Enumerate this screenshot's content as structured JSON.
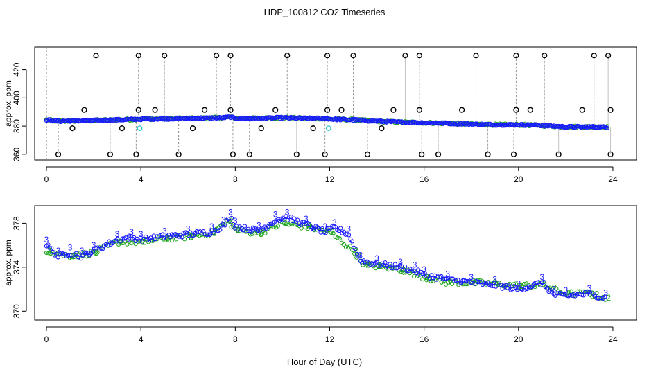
{
  "title": "HDP_100812  CO2 Timeseries",
  "xlabel": "Hour of Day (UTC)",
  "colors": {
    "blue": "#1a1aff",
    "green": "#1aa31a",
    "cyan": "#33cccc",
    "black": "#000000",
    "gray": "#888888"
  },
  "chart_data": [
    {
      "type": "scatter",
      "name": "top-panel",
      "ylabel": "approx. ppm",
      "xlim": [
        -0.5,
        25.0
      ],
      "ylim": [
        356,
        436
      ],
      "xticks": [
        "0",
        "4",
        "8",
        "12",
        "16",
        "20",
        "24"
      ],
      "xtick_values": [
        0,
        4,
        8,
        12,
        16,
        20,
        24
      ],
      "yticks": [
        "360",
        "380",
        "400",
        "420"
      ],
      "ytick_values": [
        360,
        380,
        400,
        420
      ],
      "baseline": {
        "x": [
          0,
          0.5,
          1,
          1.5,
          2,
          3,
          3.7,
          3.8,
          4,
          5,
          6,
          7,
          7.5,
          7.8,
          8,
          9,
          10,
          11,
          11.9,
          12,
          13,
          14,
          15,
          16,
          17,
          18,
          19,
          20,
          21,
          22,
          23,
          23.8
        ],
        "y": [
          384.5,
          383.5,
          383.8,
          383.8,
          384,
          384.5,
          384.8,
          385,
          385,
          385.3,
          385.5,
          385.8,
          386,
          386.5,
          385.5,
          385.5,
          386,
          385.5,
          385.5,
          385,
          384.5,
          383.5,
          382.8,
          382.5,
          382,
          381.5,
          381,
          381,
          380.5,
          379.5,
          379.5,
          379.3
        ]
      },
      "outliers_high": {
        "x": [
          2.1,
          3.9,
          5.0,
          7.2,
          7.8,
          10.2,
          11.9,
          13.0,
          15.2,
          15.8,
          18.2,
          19.9,
          21.1,
          23.2,
          23.8
        ],
        "y": 430
      },
      "outliers_mid": {
        "x": [
          1.6,
          3.9,
          4.6,
          6.7,
          7.8,
          9.7,
          11.9,
          12.5,
          14.7,
          15.8,
          17.6,
          19.9,
          20.5,
          22.7,
          23.9
        ],
        "y": 391.5
      },
      "outliers_low": {
        "x": [
          0.5,
          2.7,
          3.8,
          5.6,
          7.9,
          8.6,
          10.6,
          11.8,
          13.6,
          15.9,
          16.6,
          18.7,
          19.8,
          21.7,
          23.9
        ],
        "y": 360
      },
      "outliers_near": {
        "x": [
          1.1,
          3.2,
          6.2,
          9.1,
          11.3,
          14.2
        ],
        "y": 378.5
      },
      "cyan_points": {
        "x": [
          3.95,
          11.95
        ],
        "y": 378.5
      }
    },
    {
      "type": "scatter",
      "name": "bottom-panel",
      "ylabel": "approx. ppm",
      "xlim": [
        -0.5,
        25.0
      ],
      "ylim": [
        369.2,
        379.6
      ],
      "xticks": [
        "0",
        "4",
        "8",
        "12",
        "16",
        "20",
        "24"
      ],
      "xtick_values": [
        0,
        4,
        8,
        12,
        16,
        20,
        24
      ],
      "yticks": [
        "370",
        "374",
        "378"
      ],
      "ytick_values": [
        370,
        374,
        378
      ],
      "series": [
        {
          "name": "3",
          "color": "blue",
          "x": [
            0,
            0.5,
            1,
            1.5,
            2,
            3,
            3.6,
            4,
            5,
            6,
            7,
            7.5,
            7.8,
            8,
            9,
            9.7,
            10.2,
            11,
            11.8,
            12.2,
            12.8,
            13.3,
            14,
            15,
            15.6,
            16,
            17,
            18,
            19,
            20,
            21,
            21.5,
            22,
            23,
            23.7
          ],
          "y": [
            376,
            375,
            375.3,
            375,
            375.5,
            376.5,
            376.7,
            376.5,
            376.8,
            377,
            377.2,
            377.8,
            378.5,
            377.7,
            377.3,
            378.3,
            378.5,
            377.9,
            377.2,
            377.6,
            377,
            374.6,
            374.3,
            374,
            373.7,
            373.3,
            372.9,
            372.6,
            372.4,
            372,
            372.6,
            371.5,
            371.4,
            371.6,
            371.2
          ]
        },
        {
          "name": "2",
          "color": "green",
          "x": [
            0,
            1,
            2,
            3,
            4,
            5,
            6,
            7,
            7.7,
            8,
            9,
            10,
            11,
            12,
            13,
            13.5,
            14,
            15,
            16,
            17,
            18,
            19,
            20,
            21,
            22,
            23,
            23.7
          ],
          "y": [
            375.5,
            375,
            375.3,
            376.3,
            376.3,
            376.6,
            376.8,
            377.1,
            378.2,
            377.4,
            377.1,
            378,
            377.7,
            377.2,
            375.5,
            374.2,
            374.1,
            373.8,
            373.1,
            372.6,
            372.6,
            372.5,
            372.3,
            372.4,
            371.6,
            371.6,
            371.2
          ]
        }
      ]
    }
  ]
}
